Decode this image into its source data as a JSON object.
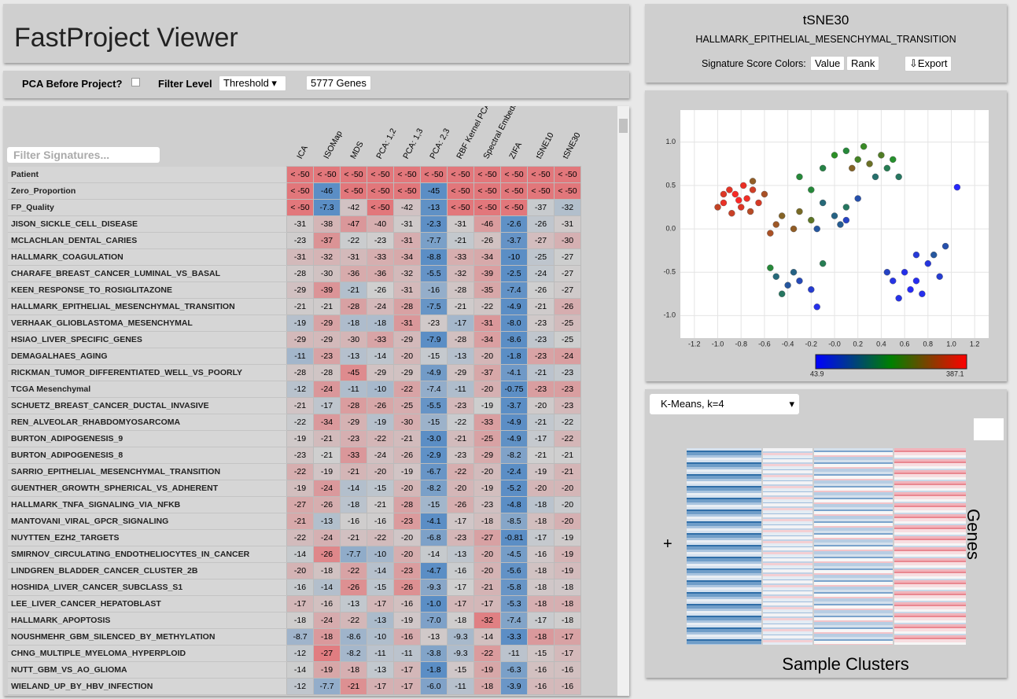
{
  "header": {
    "title": "FastProject Viewer"
  },
  "controls": {
    "pca_label": "PCA Before Project?",
    "filter_label": "Filter Level",
    "filter_value": "Threshold",
    "genes": "5777 Genes",
    "filter_placeholder": "Filter Signatures..."
  },
  "table": {
    "columns": [
      "ICA",
      "ISOMap",
      "MDS",
      "PCA: 1,2",
      "PCA: 1,3",
      "PCA: 2,3",
      "RBF Kernel PCA",
      "Spectral Embedding",
      "ZIFA",
      "tSNE10",
      "tSNE30"
    ],
    "rows": [
      {
        "name": "Patient",
        "values": [
          "< -50",
          "< -50",
          "< -50",
          "< -50",
          "< -50",
          "< -50",
          "< -50",
          "< -50",
          "< -50",
          "< -50",
          "< -50"
        ]
      },
      {
        "name": "Zero_Proportion",
        "values": [
          "< -50",
          "-46",
          "< -50",
          "< -50",
          "< -50",
          "-45",
          "< -50",
          "< -50",
          "< -50",
          "< -50",
          "< -50"
        ]
      },
      {
        "name": "FP_Quality",
        "values": [
          "< -50",
          "-7.3",
          "-42",
          "< -50",
          "-42",
          "-13",
          "< -50",
          "< -50",
          "< -50",
          "-37",
          "-32"
        ]
      },
      {
        "name": "JISON_SICKLE_CELL_DISEASE",
        "values": [
          "-31",
          "-38",
          "-47",
          "-40",
          "-31",
          "-2.3",
          "-31",
          "-46",
          "-2.6",
          "-26",
          "-31"
        ]
      },
      {
        "name": "MCLACHLAN_DENTAL_CARIES",
        "values": [
          "-23",
          "-37",
          "-22",
          "-23",
          "-31",
          "-7.7",
          "-21",
          "-26",
          "-3.7",
          "-27",
          "-30"
        ]
      },
      {
        "name": "HALLMARK_COAGULATION",
        "values": [
          "-31",
          "-32",
          "-31",
          "-33",
          "-34",
          "-8.8",
          "-33",
          "-34",
          "-10",
          "-25",
          "-27"
        ]
      },
      {
        "name": "CHARAFE_BREAST_CANCER_LUMINAL_VS_BASAL",
        "values": [
          "-28",
          "-30",
          "-36",
          "-36",
          "-32",
          "-5.5",
          "-32",
          "-39",
          "-2.5",
          "-24",
          "-27"
        ]
      },
      {
        "name": "KEEN_RESPONSE_TO_ROSIGLITAZONE",
        "values": [
          "-29",
          "-39",
          "-21",
          "-26",
          "-31",
          "-16",
          "-28",
          "-35",
          "-7.4",
          "-26",
          "-27"
        ]
      },
      {
        "name": "HALLMARK_EPITHELIAL_MESENCHYMAL_TRANSITION",
        "values": [
          "-21",
          "-21",
          "-28",
          "-24",
          "-28",
          "-7.5",
          "-21",
          "-22",
          "-4.9",
          "-21",
          "-26"
        ]
      },
      {
        "name": "VERHAAK_GLIOBLASTOMA_MESENCHYMAL",
        "values": [
          "-19",
          "-29",
          "-18",
          "-18",
          "-31",
          "-23",
          "-17",
          "-31",
          "-8.0",
          "-23",
          "-25"
        ]
      },
      {
        "name": "HSIAO_LIVER_SPECIFIC_GENES",
        "values": [
          "-29",
          "-29",
          "-30",
          "-33",
          "-29",
          "-7.9",
          "-28",
          "-34",
          "-8.6",
          "-23",
          "-25"
        ]
      },
      {
        "name": "DEMAGALHAES_AGING",
        "values": [
          "-11",
          "-23",
          "-13",
          "-14",
          "-20",
          "-15",
          "-13",
          "-20",
          "-1.8",
          "-23",
          "-24"
        ]
      },
      {
        "name": "RICKMAN_TUMOR_DIFFERENTIATED_WELL_VS_POORLY",
        "values": [
          "-28",
          "-28",
          "-45",
          "-29",
          "-29",
          "-4.9",
          "-29",
          "-37",
          "-4.1",
          "-21",
          "-23"
        ]
      },
      {
        "name": "TCGA Mesenchymal",
        "values": [
          "-12",
          "-24",
          "-11",
          "-10",
          "-22",
          "-7.4",
          "-11",
          "-20",
          "-0.75",
          "-23",
          "-23"
        ]
      },
      {
        "name": "SCHUETZ_BREAST_CANCER_DUCTAL_INVASIVE",
        "values": [
          "-21",
          "-17",
          "-28",
          "-26",
          "-25",
          "-5.5",
          "-23",
          "-19",
          "-3.7",
          "-20",
          "-23"
        ]
      },
      {
        "name": "REN_ALVEOLAR_RHABDOMYOSARCOMA",
        "values": [
          "-22",
          "-34",
          "-29",
          "-19",
          "-30",
          "-15",
          "-22",
          "-33",
          "-4.9",
          "-21",
          "-22"
        ]
      },
      {
        "name": "BURTON_ADIPOGENESIS_9",
        "values": [
          "-19",
          "-21",
          "-23",
          "-22",
          "-21",
          "-3.0",
          "-21",
          "-25",
          "-4.9",
          "-17",
          "-22"
        ]
      },
      {
        "name": "BURTON_ADIPOGENESIS_8",
        "values": [
          "-23",
          "-21",
          "-33",
          "-24",
          "-26",
          "-2.9",
          "-23",
          "-29",
          "-8.2",
          "-21",
          "-21"
        ]
      },
      {
        "name": "SARRIO_EPITHELIAL_MESENCHYMAL_TRANSITION",
        "values": [
          "-22",
          "-19",
          "-21",
          "-20",
          "-19",
          "-6.7",
          "-22",
          "-20",
          "-2.4",
          "-19",
          "-21"
        ]
      },
      {
        "name": "GUENTHER_GROWTH_SPHERICAL_VS_ADHERENT",
        "values": [
          "-19",
          "-24",
          "-14",
          "-15",
          "-20",
          "-8.2",
          "-20",
          "-19",
          "-5.2",
          "-20",
          "-20"
        ]
      },
      {
        "name": "HALLMARK_TNFA_SIGNALING_VIA_NFKB",
        "values": [
          "-27",
          "-26",
          "-18",
          "-21",
          "-28",
          "-15",
          "-26",
          "-23",
          "-4.8",
          "-18",
          "-20"
        ]
      },
      {
        "name": "MANTOVANI_VIRAL_GPCR_SIGNALING",
        "values": [
          "-21",
          "-13",
          "-16",
          "-16",
          "-23",
          "-4.1",
          "-17",
          "-18",
          "-8.5",
          "-18",
          "-20"
        ]
      },
      {
        "name": "NUYTTEN_EZH2_TARGETS",
        "values": [
          "-22",
          "-24",
          "-21",
          "-22",
          "-20",
          "-6.8",
          "-23",
          "-27",
          "-0.81",
          "-17",
          "-19"
        ]
      },
      {
        "name": "SMIRNOV_CIRCULATING_ENDOTHELIOCYTES_IN_CANCER",
        "values": [
          "-14",
          "-26",
          "-7.7",
          "-10",
          "-20",
          "-14",
          "-13",
          "-20",
          "-4.5",
          "-16",
          "-19"
        ]
      },
      {
        "name": "LINDGREN_BLADDER_CANCER_CLUSTER_2B",
        "values": [
          "-20",
          "-18",
          "-22",
          "-14",
          "-23",
          "-4.7",
          "-16",
          "-20",
          "-5.6",
          "-18",
          "-19"
        ]
      },
      {
        "name": "HOSHIDA_LIVER_CANCER_SUBCLASS_S1",
        "values": [
          "-16",
          "-14",
          "-26",
          "-15",
          "-26",
          "-9.3",
          "-17",
          "-21",
          "-5.8",
          "-18",
          "-18"
        ]
      },
      {
        "name": "LEE_LIVER_CANCER_HEPATOBLAST",
        "values": [
          "-17",
          "-16",
          "-13",
          "-17",
          "-16",
          "-1.0",
          "-17",
          "-17",
          "-5.3",
          "-18",
          "-18"
        ]
      },
      {
        "name": "HALLMARK_APOPTOSIS",
        "values": [
          "-18",
          "-24",
          "-22",
          "-13",
          "-19",
          "-7.0",
          "-18",
          "-32",
          "-7.4",
          "-17",
          "-18"
        ]
      },
      {
        "name": "NOUSHMEHR_GBM_SILENCED_BY_METHYLATION",
        "values": [
          "-8.7",
          "-18",
          "-8.6",
          "-10",
          "-16",
          "-13",
          "-9.3",
          "-14",
          "-3.3",
          "-18",
          "-17"
        ]
      },
      {
        "name": "CHNG_MULTIPLE_MYELOMA_HYPERPLOID",
        "values": [
          "-12",
          "-27",
          "-8.2",
          "-11",
          "-11",
          "-3.8",
          "-9.3",
          "-22",
          "-11",
          "-15",
          "-17"
        ]
      },
      {
        "name": "NUTT_GBM_VS_AO_GLIOMA",
        "values": [
          "-14",
          "-19",
          "-18",
          "-13",
          "-17",
          "-1.8",
          "-15",
          "-19",
          "-6.3",
          "-16",
          "-16"
        ]
      },
      {
        "name": "WIELAND_UP_BY_HBV_INFECTION",
        "values": [
          "-12",
          "-7.7",
          "-21",
          "-17",
          "-17",
          "-6.0",
          "-11",
          "-18",
          "-3.9",
          "-16",
          "-16"
        ]
      }
    ]
  },
  "scatter_panel": {
    "title": "tSNE30",
    "subtitle": "HALLMARK_EPITHELIAL_MESENCHYMAL_TRANSITION",
    "score_colors_label": "Signature Score Colors:",
    "buttons": [
      "Value",
      "Rank"
    ],
    "export": "⇩Export"
  },
  "chart_data": {
    "type": "scatter",
    "x": [
      -0.95,
      -0.85,
      -0.75,
      -0.8,
      -0.7,
      -0.9,
      -1.0,
      -0.65,
      -0.78,
      -0.88,
      -0.72,
      -0.6,
      -0.82,
      -0.95,
      -0.7,
      -0.5,
      -0.45,
      -0.35,
      -0.3,
      -0.2,
      -0.55,
      0.0,
      0.1,
      0.2,
      0.3,
      0.4,
      0.45,
      0.35,
      0.25,
      0.15,
      0.5,
      -0.1,
      -0.3,
      0.55,
      -0.1,
      0.0,
      0.1,
      -0.15,
      0.05,
      -0.2,
      0.2,
      0.1,
      0.6,
      0.7,
      0.8,
      0.65,
      0.5,
      0.75,
      0.9,
      0.85,
      0.55,
      0.95,
      0.7,
      0.45,
      1.05,
      -0.5,
      -0.4,
      -0.3,
      -0.45,
      -0.2,
      -0.35,
      -0.15,
      -0.55,
      -0.1
    ],
    "y": [
      0.3,
      0.4,
      0.35,
      0.25,
      0.45,
      0.45,
      0.25,
      0.3,
      0.5,
      0.18,
      0.2,
      0.4,
      0.33,
      0.4,
      0.55,
      0.05,
      0.15,
      0.0,
      0.2,
      0.1,
      -0.05,
      0.85,
      0.9,
      0.8,
      0.75,
      0.85,
      0.7,
      0.6,
      0.95,
      0.7,
      0.8,
      0.7,
      0.6,
      0.6,
      0.3,
      0.15,
      0.25,
      0.0,
      0.05,
      0.45,
      0.35,
      0.1,
      -0.5,
      -0.6,
      -0.4,
      -0.7,
      -0.6,
      -0.75,
      -0.55,
      -0.3,
      -0.8,
      -0.2,
      -0.3,
      -0.5,
      0.48,
      -0.55,
      -0.65,
      -0.6,
      -0.75,
      -0.7,
      -0.5,
      -0.9,
      -0.45,
      -0.4
    ],
    "scores": [
      370,
      380,
      375,
      360,
      350,
      365,
      340,
      355,
      372,
      345,
      330,
      320,
      385,
      360,
      300,
      310,
      290,
      300,
      280,
      260,
      320,
      220,
      200,
      240,
      270,
      250,
      180,
      160,
      230,
      290,
      210,
      190,
      200,
      170,
      150,
      140,
      170,
      120,
      130,
      200,
      110,
      90,
      60,
      55,
      70,
      50,
      65,
      58,
      80,
      120,
      62,
      110,
      75,
      90,
      45,
      150,
      120,
      100,
      170,
      80,
      140,
      60,
      200,
      180
    ],
    "xlim": [
      -1.32,
      1.32
    ],
    "ylim": [
      -1.26,
      1.37
    ],
    "xticks": [
      -1.2,
      {
        "value": -1.0,
        "label": "-1.0"
      },
      -0.8,
      -0.6,
      -0.4,
      -0.2,
      {
        "value": 0,
        "label": "-0.0"
      },
      0.2,
      0.4,
      0.6,
      0.8,
      {
        "value": 1.0,
        "label": "1.0"
      },
      1.2
    ],
    "yticks": [
      {
        "value": 1.0,
        "label": "1.0"
      },
      0.5,
      {
        "value": 0,
        "label": "0.0"
      },
      -0.5,
      {
        "value": -1.0,
        "label": "-1.0"
      }
    ],
    "grid": true,
    "colorscale": [
      "#0000ff",
      "#008000",
      "#ff0000"
    ],
    "colorbar_range": [
      43.9,
      387.1
    ]
  },
  "heatmap": {
    "clustering": "K-Means, k=4",
    "expand": "+",
    "y_label": "Genes",
    "x_label": "Sample Clusters"
  }
}
